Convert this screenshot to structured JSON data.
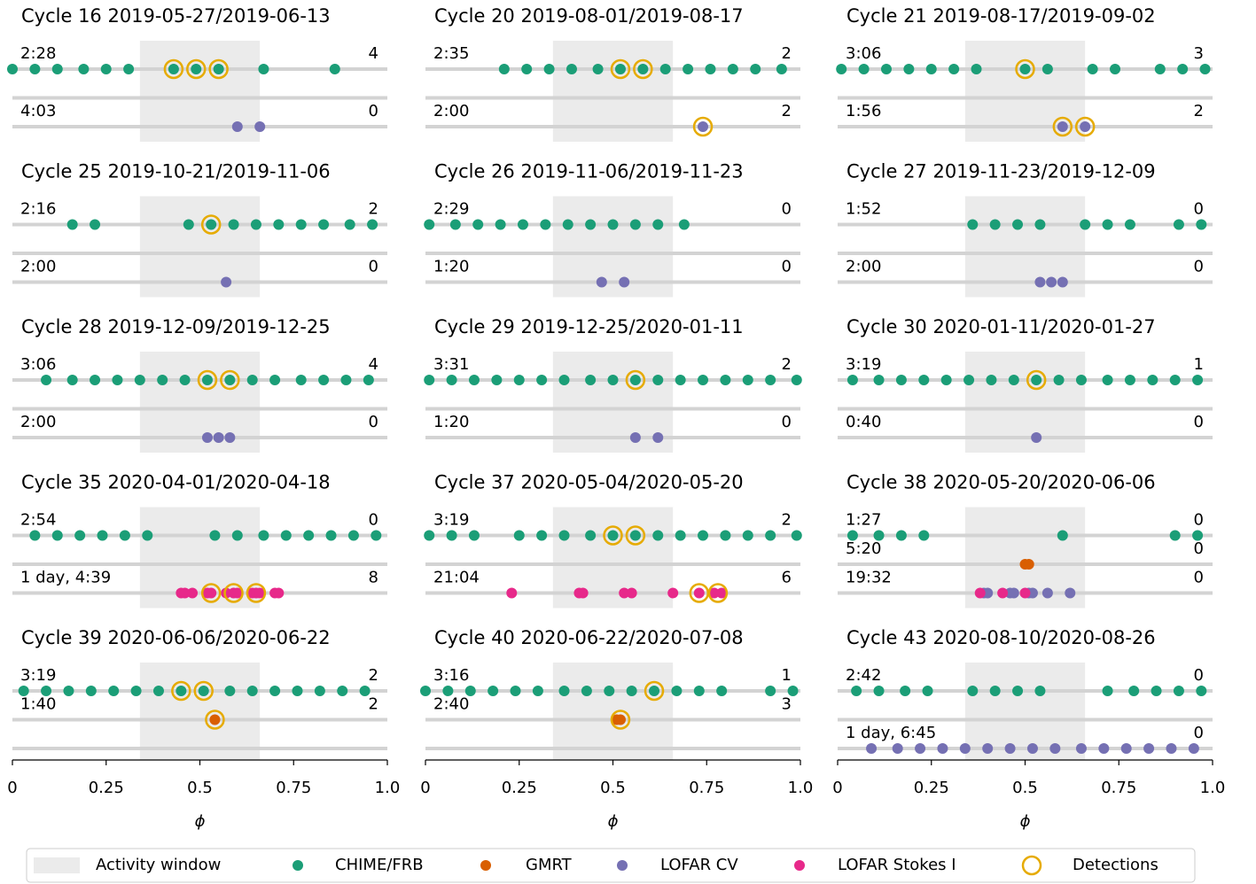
{
  "chart_data": {
    "type": "strip",
    "xlim": [
      0,
      1
    ],
    "xticks": [
      0,
      0.25,
      0.5,
      0.75,
      {
        "value": 1,
        "label": "1.0"
      }
    ],
    "xlabel": "ϕ",
    "activity_window": [
      0.34,
      0.66
    ],
    "activity_label": "Activity window",
    "activity_color": "#ebebeb",
    "series": [
      {
        "name": "CHIME/FRB",
        "color": "#1b9e77"
      },
      {
        "name": "GMRT",
        "color": "#d95f02"
      },
      {
        "name": "LOFAR CV",
        "color": "#7570b3"
      },
      {
        "name": "LOFAR Stokes I",
        "color": "#e7298a"
      }
    ],
    "detections": {
      "name": "Detections",
      "color": "#e6ab02"
    },
    "panels": [
      {
        "title": "Cycle 16 2019-05-27/2019-06-13",
        "tracks": [
          {
            "duration": "2:28",
            "count": 4,
            "groups": [
              {
                "series": 0,
                "values": [
                  0.0,
                  0.06,
                  0.12,
                  0.19,
                  0.25,
                  0.31,
                  0.43,
                  0.49,
                  0.55,
                  0.67,
                  0.86
                ]
              }
            ],
            "detections": [
              0.43,
              0.49,
              0.55
            ]
          },
          {
            "duration": "4:03",
            "count": 0,
            "groups": [
              {
                "series": 2,
                "values": [
                  0.6,
                  0.66
                ]
              }
            ],
            "detections": []
          }
        ]
      },
      {
        "title": "Cycle 20 2019-08-01/2019-08-17",
        "tracks": [
          {
            "duration": "2:35",
            "count": 2,
            "groups": [
              {
                "series": 0,
                "values": [
                  0.21,
                  0.27,
                  0.33,
                  0.39,
                  0.46,
                  0.52,
                  0.58,
                  0.64,
                  0.7,
                  0.76,
                  0.82,
                  0.88,
                  0.95
                ]
              }
            ],
            "detections": [
              0.52,
              0.58
            ]
          },
          {
            "duration": "2:00",
            "count": 2,
            "groups": [
              {
                "series": 2,
                "values": [
                  0.74
                ]
              }
            ],
            "detections": [
              0.74
            ]
          }
        ]
      },
      {
        "title": "Cycle 21 2019-08-17/2019-09-02",
        "tracks": [
          {
            "duration": "3:06",
            "count": 3,
            "groups": [
              {
                "series": 0,
                "values": [
                  0.01,
                  0.07,
                  0.13,
                  0.19,
                  0.25,
                  0.31,
                  0.37,
                  0.5,
                  0.56,
                  0.68,
                  0.74,
                  0.86,
                  0.92,
                  0.98
                ]
              }
            ],
            "detections": [
              0.5
            ]
          },
          {
            "duration": "1:56",
            "count": 2,
            "groups": [
              {
                "series": 2,
                "values": [
                  0.6,
                  0.66
                ]
              }
            ],
            "detections": [
              0.6,
              0.66
            ]
          }
        ]
      },
      {
        "title": "Cycle 25 2019-10-21/2019-11-06",
        "tracks": [
          {
            "duration": "2:16",
            "count": 2,
            "groups": [
              {
                "series": 0,
                "values": [
                  0.16,
                  0.22,
                  0.47,
                  0.53,
                  0.59,
                  0.65,
                  0.71,
                  0.77,
                  0.83,
                  0.9,
                  0.96
                ]
              }
            ],
            "detections": [
              0.53
            ]
          },
          {
            "duration": "2:00",
            "count": 0,
            "groups": [
              {
                "series": 2,
                "values": [
                  0.57
                ]
              }
            ],
            "detections": []
          }
        ]
      },
      {
        "title": "Cycle 26 2019-11-06/2019-11-23",
        "tracks": [
          {
            "duration": "2:29",
            "count": 0,
            "groups": [
              {
                "series": 0,
                "values": [
                  0.01,
                  0.08,
                  0.14,
                  0.2,
                  0.26,
                  0.32,
                  0.38,
                  0.44,
                  0.5,
                  0.56,
                  0.62,
                  0.69
                ]
              }
            ],
            "detections": []
          },
          {
            "duration": "1:20",
            "count": 0,
            "groups": [
              {
                "series": 2,
                "values": [
                  0.47,
                  0.53
                ]
              }
            ],
            "detections": []
          }
        ]
      },
      {
        "title": "Cycle 27 2019-11-23/2019-12-09",
        "tracks": [
          {
            "duration": "1:52",
            "count": 0,
            "groups": [
              {
                "series": 0,
                "values": [
                  0.36,
                  0.42,
                  0.48,
                  0.54,
                  0.66,
                  0.72,
                  0.78,
                  0.91,
                  0.97
                ]
              }
            ],
            "detections": []
          },
          {
            "duration": "2:00",
            "count": 0,
            "groups": [
              {
                "series": 2,
                "values": [
                  0.54,
                  0.57,
                  0.6
                ]
              }
            ],
            "detections": []
          }
        ]
      },
      {
        "title": "Cycle 28 2019-12-09/2019-12-25",
        "tracks": [
          {
            "duration": "3:06",
            "count": 4,
            "groups": [
              {
                "series": 0,
                "values": [
                  0.09,
                  0.16,
                  0.22,
                  0.28,
                  0.34,
                  0.4,
                  0.46,
                  0.52,
                  0.58,
                  0.64,
                  0.7,
                  0.77,
                  0.83,
                  0.89,
                  0.95
                ]
              }
            ],
            "detections": [
              0.52,
              0.58
            ]
          },
          {
            "duration": "2:00",
            "count": 0,
            "groups": [
              {
                "series": 2,
                "values": [
                  0.52,
                  0.55,
                  0.58
                ]
              }
            ],
            "detections": []
          }
        ]
      },
      {
        "title": "Cycle 29 2019-12-25/2020-01-11",
        "tracks": [
          {
            "duration": "3:31",
            "count": 2,
            "groups": [
              {
                "series": 0,
                "values": [
                  0.01,
                  0.07,
                  0.13,
                  0.19,
                  0.25,
                  0.31,
                  0.37,
                  0.44,
                  0.5,
                  0.56,
                  0.62,
                  0.68,
                  0.74,
                  0.8,
                  0.86,
                  0.92,
                  0.99
                ]
              }
            ],
            "detections": [
              0.56
            ]
          },
          {
            "duration": "1:20",
            "count": 0,
            "groups": [
              {
                "series": 2,
                "values": [
                  0.56,
                  0.62
                ]
              }
            ],
            "detections": []
          }
        ]
      },
      {
        "title": "Cycle 30 2020-01-11/2020-01-27",
        "tracks": [
          {
            "duration": "3:19",
            "count": 1,
            "groups": [
              {
                "series": 0,
                "values": [
                  0.04,
                  0.11,
                  0.17,
                  0.23,
                  0.29,
                  0.35,
                  0.41,
                  0.47,
                  0.53,
                  0.59,
                  0.65,
                  0.72,
                  0.78,
                  0.84,
                  0.9,
                  0.96
                ]
              }
            ],
            "detections": [
              0.53
            ]
          },
          {
            "duration": "0:40",
            "count": 0,
            "groups": [
              {
                "series": 2,
                "values": [
                  0.53
                ]
              }
            ],
            "detections": []
          }
        ]
      },
      {
        "title": "Cycle 35 2020-04-01/2020-04-18",
        "tracks": [
          {
            "duration": "2:54",
            "count": 0,
            "groups": [
              {
                "series": 0,
                "values": [
                  0.06,
                  0.12,
                  0.18,
                  0.24,
                  0.3,
                  0.36,
                  0.54,
                  0.6,
                  0.67,
                  0.73,
                  0.79,
                  0.85,
                  0.91,
                  0.97
                ]
              }
            ],
            "detections": []
          },
          {
            "duration": "1 day, 4:39",
            "count": 8,
            "groups": [
              {
                "series": 3,
                "values": [
                  0.45,
                  0.46,
                  0.48,
                  0.52,
                  0.53,
                  0.57,
                  0.59,
                  0.6,
                  0.64,
                  0.65,
                  0.66,
                  0.7,
                  0.71
                ]
              }
            ],
            "detections": [
              0.53,
              0.59,
              0.65
            ]
          }
        ]
      },
      {
        "title": "Cycle 37 2020-05-04/2020-05-20",
        "tracks": [
          {
            "duration": "3:19",
            "count": 2,
            "groups": [
              {
                "series": 0,
                "values": [
                  0.01,
                  0.07,
                  0.13,
                  0.25,
                  0.31,
                  0.37,
                  0.44,
                  0.5,
                  0.56,
                  0.62,
                  0.68,
                  0.74,
                  0.8,
                  0.86,
                  0.92,
                  0.99
                ]
              }
            ],
            "detections": [
              0.5,
              0.56
            ]
          },
          {
            "duration": "21:04",
            "count": 6,
            "groups": [
              {
                "series": 3,
                "values": [
                  0.23,
                  0.41,
                  0.42,
                  0.53,
                  0.55,
                  0.66,
                  0.73,
                  0.77,
                  0.79
                ]
              }
            ],
            "detections": [
              0.73,
              0.78
            ]
          }
        ]
      },
      {
        "title": "Cycle 38 2020-05-20/2020-06-06",
        "tracks": [
          {
            "duration": "1:27",
            "count": 0,
            "groups": [
              {
                "series": 0,
                "values": [
                  0.04,
                  0.11,
                  0.17,
                  0.23,
                  0.6,
                  0.9,
                  0.96
                ]
              }
            ],
            "detections": []
          },
          {
            "duration": "5:20",
            "count": 0,
            "groups": [
              {
                "series": 1,
                "values": [
                  0.5,
                  0.51
                ]
              }
            ],
            "detections": []
          },
          {
            "duration": "19:32",
            "count": 0,
            "groups": [
              {
                "series": 2,
                "values": [
                  0.39,
                  0.4,
                  0.46,
                  0.47,
                  0.51,
                  0.52,
                  0.56,
                  0.62
                ]
              },
              {
                "series": 3,
                "values": [
                  0.38,
                  0.44,
                  0.5
                ]
              }
            ],
            "detections": []
          }
        ]
      },
      {
        "title": "Cycle 39 2020-06-06/2020-06-22",
        "tracks": [
          {
            "duration": "3:19",
            "count": 2,
            "groups": [
              {
                "series": 0,
                "values": [
                  0.03,
                  0.09,
                  0.15,
                  0.21,
                  0.27,
                  0.33,
                  0.39,
                  0.45,
                  0.51,
                  0.58,
                  0.64,
                  0.7,
                  0.76,
                  0.82,
                  0.88,
                  0.94
                ]
              }
            ],
            "detections": [
              0.45,
              0.51
            ]
          },
          {
            "duration": "1:40",
            "count": 2,
            "groups": [
              {
                "series": 1,
                "values": [
                  0.54
                ]
              }
            ],
            "detections": [
              0.54
            ]
          }
        ]
      },
      {
        "title": "Cycle 40 2020-06-22/2020-07-08",
        "tracks": [
          {
            "duration": "3:16",
            "count": 1,
            "groups": [
              {
                "series": 0,
                "values": [
                  0.0,
                  0.06,
                  0.12,
                  0.18,
                  0.24,
                  0.3,
                  0.37,
                  0.43,
                  0.49,
                  0.55,
                  0.61,
                  0.67,
                  0.73,
                  0.79,
                  0.92,
                  0.98
                ]
              }
            ],
            "detections": [
              0.61
            ]
          },
          {
            "duration": "2:40",
            "count": 3,
            "groups": [
              {
                "series": 1,
                "values": [
                  0.51,
                  0.52
                ]
              }
            ],
            "detections": [
              0.52
            ]
          }
        ]
      },
      {
        "title": "Cycle 43 2020-08-10/2020-08-26",
        "tracks": [
          {
            "duration": "2:42",
            "count": 0,
            "groups": [
              {
                "series": 0,
                "values": [
                  0.05,
                  0.11,
                  0.18,
                  0.24,
                  0.36,
                  0.42,
                  0.48,
                  0.54,
                  0.72,
                  0.79,
                  0.85,
                  0.91,
                  0.97
                ]
              }
            ],
            "detections": []
          },
          {
            "duration": "1 day, 6:45",
            "count": 0,
            "groups": [
              {
                "series": 2,
                "values": [
                  0.09,
                  0.16,
                  0.22,
                  0.28,
                  0.34,
                  0.4,
                  0.46,
                  0.52,
                  0.58,
                  0.65,
                  0.71,
                  0.77,
                  0.83,
                  0.89,
                  0.95
                ]
              }
            ],
            "detections": []
          }
        ]
      }
    ]
  }
}
